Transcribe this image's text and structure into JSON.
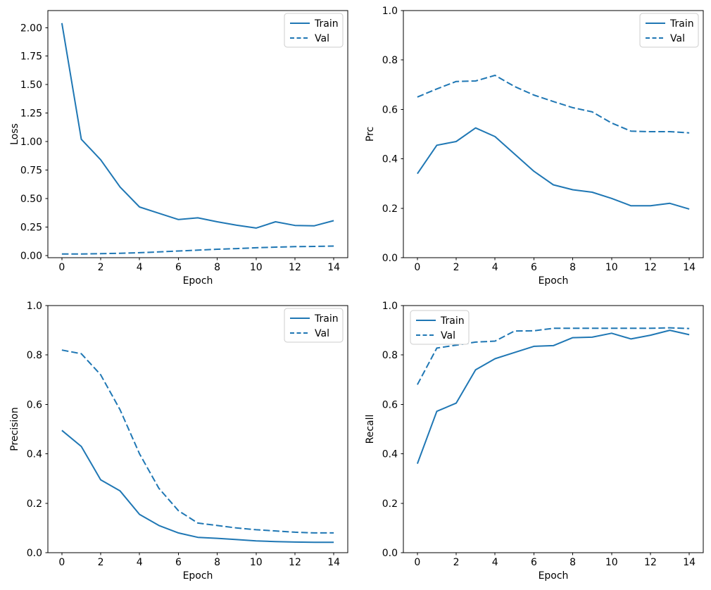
{
  "figure": {
    "background": "#ffffff",
    "line_color": "#1f77b4",
    "text_color": "#000000",
    "legend_border_color": "#cccccc",
    "legend_fill": "#ffffff"
  },
  "chart_data": [
    {
      "name": "loss",
      "type": "line",
      "title": "",
      "xlabel": "Epoch",
      "ylabel": "Loss",
      "x": [
        0,
        1,
        2,
        3,
        4,
        5,
        6,
        7,
        8,
        9,
        10,
        11,
        12,
        13,
        14
      ],
      "series": [
        {
          "name": "Train",
          "style": "solid",
          "values": [
            2.04,
            1.02,
            0.84,
            0.6,
            0.425,
            0.37,
            0.315,
            0.33,
            0.295,
            0.265,
            0.24,
            0.295,
            0.263,
            0.26,
            0.305
          ]
        },
        {
          "name": "Val",
          "style": "dashed",
          "values": [
            0.013,
            0.013,
            0.015,
            0.019,
            0.024,
            0.031,
            0.039,
            0.046,
            0.054,
            0.06,
            0.067,
            0.073,
            0.077,
            0.079,
            0.082
          ]
        }
      ],
      "xlim": [
        -0.72,
        14.72
      ],
      "ylim": [
        -0.02,
        2.15
      ],
      "xticks": [
        0,
        2,
        4,
        6,
        8,
        10,
        12,
        14
      ],
      "xtick_labels": [
        "0",
        "2",
        "4",
        "6",
        "8",
        "10",
        "12",
        "14"
      ],
      "yticks": [
        0,
        0.25,
        0.5,
        0.75,
        1.0,
        1.25,
        1.5,
        1.75,
        2.0
      ],
      "ytick_labels": [
        "0.00",
        "0.25",
        "0.50",
        "0.75",
        "1.00",
        "1.25",
        "1.50",
        "1.75",
        "2.00"
      ],
      "grid": false,
      "legend": {
        "loc": "upper-right",
        "entries": [
          "Train",
          "Val"
        ]
      }
    },
    {
      "name": "prc",
      "type": "line",
      "title": "",
      "xlabel": "Epoch",
      "ylabel": "Prc",
      "x": [
        0,
        1,
        2,
        3,
        4,
        5,
        6,
        7,
        8,
        9,
        10,
        11,
        12,
        13,
        14
      ],
      "series": [
        {
          "name": "Train",
          "style": "solid",
          "values": [
            0.34,
            0.455,
            0.47,
            0.525,
            0.49,
            0.42,
            0.35,
            0.295,
            0.275,
            0.265,
            0.24,
            0.21,
            0.21,
            0.22,
            0.197
          ]
        },
        {
          "name": "Val",
          "style": "dashed",
          "values": [
            0.65,
            0.683,
            0.713,
            0.715,
            0.738,
            0.693,
            0.658,
            0.632,
            0.607,
            0.59,
            0.545,
            0.512,
            0.51,
            0.51,
            0.505
          ]
        }
      ],
      "xlim": [
        -0.72,
        14.72
      ],
      "ylim": [
        0,
        1
      ],
      "xticks": [
        0,
        2,
        4,
        6,
        8,
        10,
        12,
        14
      ],
      "xtick_labels": [
        "0",
        "2",
        "4",
        "6",
        "8",
        "10",
        "12",
        "14"
      ],
      "yticks": [
        0,
        0.2,
        0.4,
        0.6,
        0.8,
        1.0
      ],
      "ytick_labels": [
        "0.0",
        "0.2",
        "0.4",
        "0.6",
        "0.8",
        "1.0"
      ],
      "grid": false,
      "legend": {
        "loc": "upper-right",
        "entries": [
          "Train",
          "Val"
        ]
      }
    },
    {
      "name": "precision",
      "type": "line",
      "title": "",
      "xlabel": "Epoch",
      "ylabel": "Precision",
      "x": [
        0,
        1,
        2,
        3,
        4,
        5,
        6,
        7,
        8,
        9,
        10,
        11,
        12,
        13,
        14
      ],
      "series": [
        {
          "name": "Train",
          "style": "solid",
          "values": [
            0.495,
            0.43,
            0.295,
            0.25,
            0.155,
            0.11,
            0.08,
            0.062,
            0.058,
            0.053,
            0.048,
            0.045,
            0.043,
            0.042,
            0.042
          ]
        },
        {
          "name": "Val",
          "style": "dashed",
          "values": [
            0.82,
            0.805,
            0.72,
            0.578,
            0.4,
            0.26,
            0.17,
            0.12,
            0.11,
            0.1,
            0.093,
            0.088,
            0.083,
            0.08,
            0.08
          ]
        }
      ],
      "xlim": [
        -0.72,
        14.72
      ],
      "ylim": [
        0,
        1
      ],
      "xticks": [
        0,
        2,
        4,
        6,
        8,
        10,
        12,
        14
      ],
      "xtick_labels": [
        "0",
        "2",
        "4",
        "6",
        "8",
        "10",
        "12",
        "14"
      ],
      "yticks": [
        0,
        0.2,
        0.4,
        0.6,
        0.8,
        1.0
      ],
      "ytick_labels": [
        "0.0",
        "0.2",
        "0.4",
        "0.6",
        "0.8",
        "1.0"
      ],
      "grid": false,
      "legend": {
        "loc": "upper-right",
        "entries": [
          "Train",
          "Val"
        ]
      }
    },
    {
      "name": "recall",
      "type": "line",
      "title": "",
      "xlabel": "Epoch",
      "ylabel": "Recall",
      "x": [
        0,
        1,
        2,
        3,
        4,
        5,
        6,
        7,
        8,
        9,
        10,
        11,
        12,
        13,
        14
      ],
      "series": [
        {
          "name": "Train",
          "style": "solid",
          "values": [
            0.36,
            0.572,
            0.605,
            0.74,
            0.785,
            0.81,
            0.835,
            0.838,
            0.87,
            0.872,
            0.888,
            0.865,
            0.88,
            0.9,
            0.882
          ]
        },
        {
          "name": "Val",
          "style": "dashed",
          "values": [
            0.68,
            0.828,
            0.84,
            0.852,
            0.856,
            0.897,
            0.898,
            0.908,
            0.908,
            0.908,
            0.908,
            0.908,
            0.908,
            0.91,
            0.907
          ]
        }
      ],
      "xlim": [
        -0.72,
        14.72
      ],
      "ylim": [
        0,
        1
      ],
      "xticks": [
        0,
        2,
        4,
        6,
        8,
        10,
        12,
        14
      ],
      "xtick_labels": [
        "0",
        "2",
        "4",
        "6",
        "8",
        "10",
        "12",
        "14"
      ],
      "yticks": [
        0,
        0.2,
        0.4,
        0.6,
        0.8,
        1.0
      ],
      "ytick_labels": [
        "0.0",
        "0.2",
        "0.4",
        "0.6",
        "0.8",
        "1.0"
      ],
      "grid": false,
      "legend": {
        "loc": "upper-left",
        "entries": [
          "Train",
          "Val"
        ]
      }
    }
  ]
}
